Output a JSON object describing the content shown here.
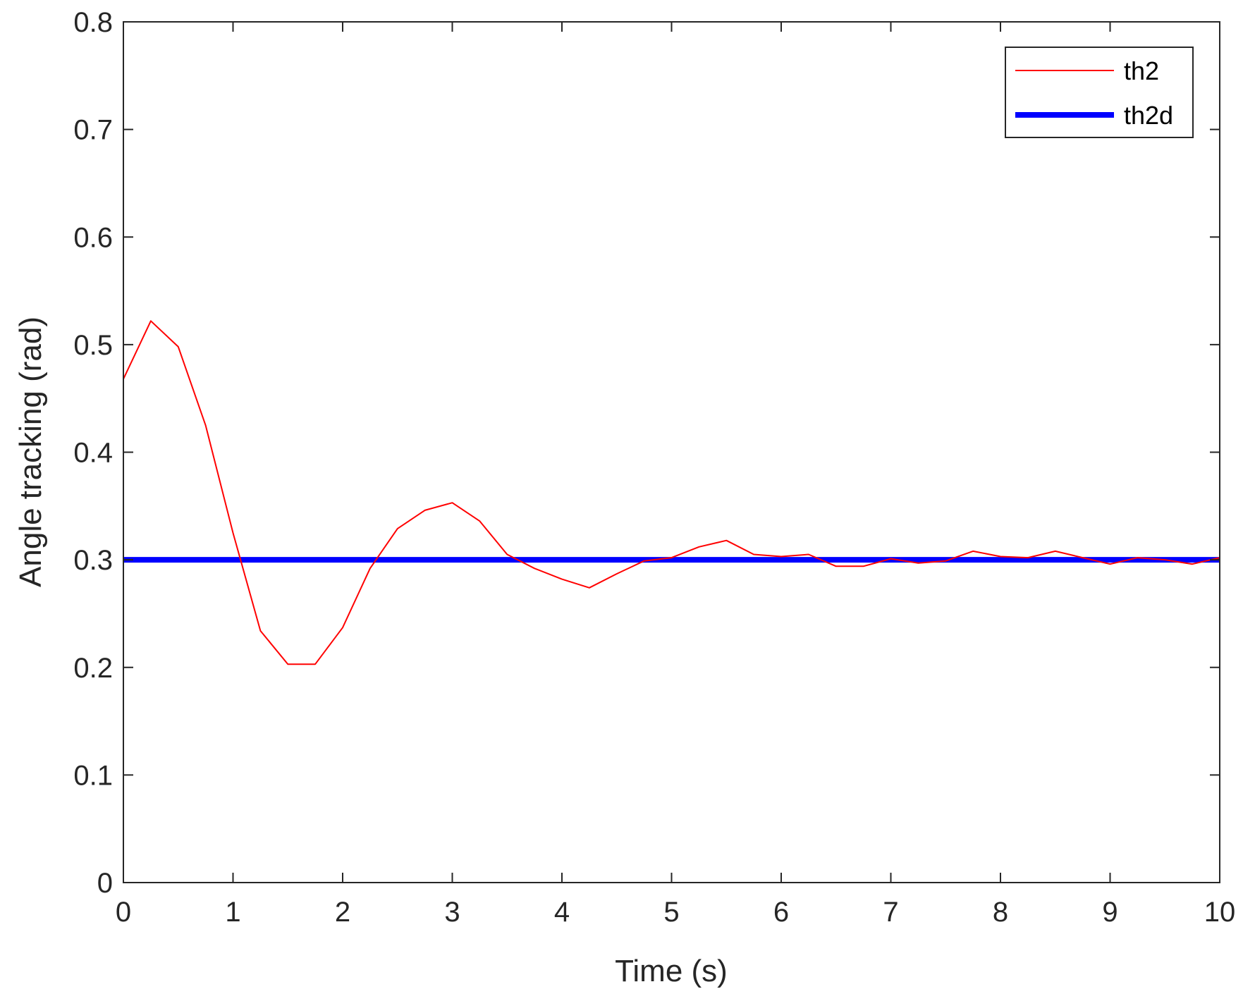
{
  "chart_data": {
    "type": "line",
    "title": "",
    "xlabel": "Time (s)",
    "ylabel": "Angle tracking (rad)",
    "xlim": [
      0,
      10
    ],
    "ylim": [
      0,
      0.8
    ],
    "x_ticks": [
      0,
      1,
      2,
      3,
      4,
      5,
      6,
      7,
      8,
      9,
      10
    ],
    "x_tick_labels": [
      "0",
      "1",
      "2",
      "3",
      "4",
      "5",
      "6",
      "7",
      "8",
      "9",
      "10"
    ],
    "y_ticks": [
      0,
      0.1,
      0.2,
      0.3,
      0.4,
      0.5,
      0.6,
      0.7,
      0.8
    ],
    "y_tick_labels": [
      "0",
      "0.1",
      "0.2",
      "0.3",
      "0.4",
      "0.5",
      "0.6",
      "0.7",
      "0.8"
    ],
    "grid": false,
    "legend_position": "top-right",
    "series": [
      {
        "name": "th2",
        "color": "#ff0000",
        "style": "thin",
        "x": [
          0,
          0.25,
          0.5,
          0.75,
          1.0,
          1.25,
          1.5,
          1.75,
          2.0,
          2.25,
          2.5,
          2.75,
          3.0,
          3.25,
          3.5,
          3.75,
          4.0,
          4.25,
          4.5,
          4.75,
          5.0,
          5.25,
          5.5,
          5.75,
          6.0,
          6.25,
          6.5,
          6.75,
          7.0,
          7.25,
          7.5,
          7.75,
          8.0,
          8.25,
          8.5,
          8.75,
          9.0,
          9.25,
          9.5,
          9.75,
          10.0
        ],
        "values": [
          0.468,
          0.522,
          0.498,
          0.425,
          0.325,
          0.234,
          0.203,
          0.203,
          0.237,
          0.292,
          0.329,
          0.346,
          0.353,
          0.336,
          0.305,
          0.292,
          0.282,
          0.274,
          0.287,
          0.299,
          0.302,
          0.312,
          0.318,
          0.305,
          0.303,
          0.305,
          0.294,
          0.294,
          0.301,
          0.297,
          0.299,
          0.308,
          0.303,
          0.302,
          0.308,
          0.302,
          0.296,
          0.302,
          0.3,
          0.296,
          0.302
        ]
      },
      {
        "name": "th2d",
        "color": "#0000ff",
        "style": "thick",
        "x": [
          0,
          10
        ],
        "values": [
          0.3,
          0.3
        ]
      }
    ]
  }
}
